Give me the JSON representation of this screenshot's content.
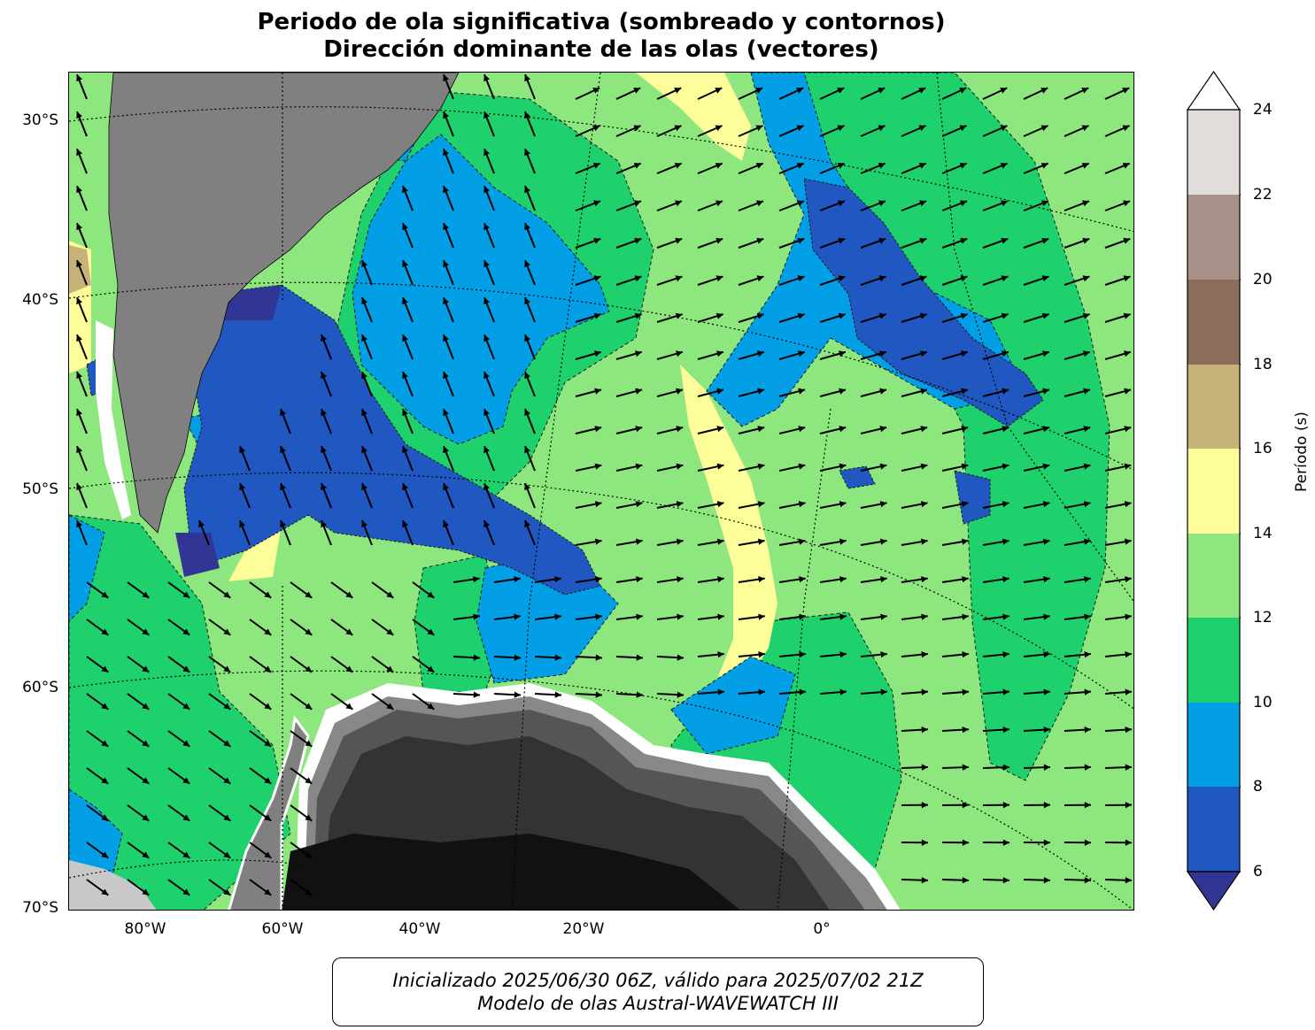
{
  "title": {
    "line1": "Periodo de ola significativa (sombreado y contornos)",
    "line2": "Dirección dominante de las olas (vectores)"
  },
  "map": {
    "lat_labels": [
      "30°S",
      "40°S",
      "50°S",
      "60°S",
      "70°S"
    ],
    "lon_labels": [
      "80°W",
      "60°W",
      "40°W",
      "20°W",
      "0°"
    ],
    "land_color": "#808080",
    "antarctic_ice_colors": [
      "#111111",
      "#333333",
      "#555555",
      "#888888",
      "#c8c8c8",
      "#ffffff"
    ]
  },
  "colorbar": {
    "label": "Período (s)",
    "ticks": [
      "6",
      "8",
      "10",
      "12",
      "14",
      "16",
      "18",
      "20",
      "22",
      "24"
    ],
    "bins": [
      {
        "range": "<6",
        "color": "#313695"
      },
      {
        "range": "6-8",
        "color": "#2157c1"
      },
      {
        "range": "8-10",
        "color": "#039fe6"
      },
      {
        "range": "10-12",
        "color": "#1ed16c"
      },
      {
        "range": "12-14",
        "color": "#8ee67e"
      },
      {
        "range": "14-16",
        "color": "#fdfd99"
      },
      {
        "range": "16-18",
        "color": "#c7b277"
      },
      {
        "range": "18-20",
        "color": "#8c6d5c"
      },
      {
        "range": "20-22",
        "color": "#a89189"
      },
      {
        "range": "22-24",
        "color": "#e2dcdb"
      },
      {
        "range": ">24",
        "color": "#ffffff"
      }
    ]
  },
  "footer": {
    "line1": "Inicializado 2025/06/30 06Z, válido para 2025/07/02 21Z",
    "line2": "Modelo de olas Austral-WAVEWATCH III"
  }
}
